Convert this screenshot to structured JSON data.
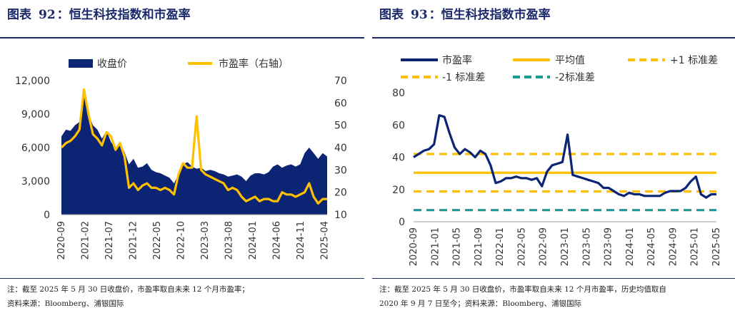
{
  "left": {
    "fig_label": "图表",
    "fig_num": "92",
    "fig_title": "：恒生科技指数和市盈率",
    "note1": "注：截至 2025 年 5 月 30 日收盘价，市盈率取自未来 12 个月市盈率；",
    "note2": "资料来源：Bloomberg、浦银国际"
  },
  "right": {
    "fig_label": "图表",
    "fig_num": "93",
    "fig_title": "：恒生科技指数市盈率",
    "note1": "注：截至 2025 年 5 月 30 日收盘价，市盈率取自未来 12 个月市盈率，历史均值取自",
    "note2": "2020 年 9 月 7 日至今；资料来源：Bloomberg、浦银国际"
  },
  "colors": {
    "navy": "#0b2474",
    "gold": "#ffc000",
    "teal": "#1a9a93",
    "title": "#1b2a6b"
  },
  "chart_data": [
    {
      "type": "area",
      "legend": [
        "收盘价",
        "市盈率（右轴）"
      ],
      "legend_position": "top",
      "x_ticks": [
        "2020-09",
        "2021-02",
        "2021-07",
        "2021-12",
        "2022-05",
        "2022-10",
        "2023-03",
        "2023-08",
        "2024-01",
        "2024-06",
        "2024-11",
        "2025-04"
      ],
      "y_left": {
        "range": [
          0,
          12000
        ],
        "ticks": [
          "0",
          "3,000",
          "6,000",
          "9,000",
          "12,000"
        ]
      },
      "y_right": {
        "range": [
          10,
          70
        ],
        "ticks": [
          "10",
          "20",
          "30",
          "40",
          "50",
          "60",
          "70"
        ]
      },
      "series": [
        {
          "name": "收盘价",
          "kind": "area",
          "axis": "left",
          "points": [
            [
              0,
              7000
            ],
            [
              1,
              7600
            ],
            [
              2,
              7500
            ],
            [
              3,
              8000
            ],
            [
              4,
              8300
            ],
            [
              5,
              11000
            ],
            [
              6,
              9000
            ],
            [
              7,
              8000
            ],
            [
              8,
              7600
            ],
            [
              9,
              6800
            ],
            [
              10,
              7500
            ],
            [
              11,
              6500
            ],
            [
              12,
              6000
            ],
            [
              13,
              6400
            ],
            [
              14,
              5600
            ],
            [
              15,
              4500
            ],
            [
              16,
              5000
            ],
            [
              17,
              4200
            ],
            [
              18,
              4300
            ],
            [
              19,
              4600
            ],
            [
              20,
              4000
            ],
            [
              21,
              3800
            ],
            [
              22,
              3700
            ],
            [
              23,
              3500
            ],
            [
              24,
              3300
            ],
            [
              25,
              2800
            ],
            [
              26,
              3600
            ],
            [
              27,
              4500
            ],
            [
              28,
              4700
            ],
            [
              29,
              4300
            ],
            [
              30,
              4100
            ],
            [
              31,
              4200
            ],
            [
              32,
              3900
            ],
            [
              33,
              4000
            ],
            [
              34,
              3900
            ],
            [
              35,
              3700
            ],
            [
              36,
              3600
            ],
            [
              37,
              3400
            ],
            [
              38,
              3500
            ],
            [
              39,
              3600
            ],
            [
              40,
              3400
            ],
            [
              41,
              3000
            ],
            [
              42,
              3500
            ],
            [
              43,
              3700
            ],
            [
              44,
              3700
            ],
            [
              45,
              3600
            ],
            [
              46,
              3800
            ],
            [
              47,
              4300
            ],
            [
              48,
              4500
            ],
            [
              49,
              4200
            ],
            [
              50,
              4400
            ],
            [
              51,
              4500
            ],
            [
              52,
              4300
            ],
            [
              53,
              4500
            ],
            [
              54,
              5500
            ],
            [
              55,
              6000
            ],
            [
              56,
              5500
            ],
            [
              57,
              5000
            ],
            [
              58,
              5500
            ],
            [
              59,
              5200
            ]
          ]
        },
        {
          "name": "市盈率（右轴）",
          "kind": "line",
          "axis": "right",
          "points": [
            [
              0,
              40
            ],
            [
              1,
              42
            ],
            [
              2,
              43
            ],
            [
              3,
              45
            ],
            [
              4,
              48
            ],
            [
              5,
              66
            ],
            [
              6,
              55
            ],
            [
              7,
              46
            ],
            [
              8,
              44
            ],
            [
              9,
              41
            ],
            [
              10,
              47
            ],
            [
              11,
              45
            ],
            [
              12,
              39
            ],
            [
              13,
              42
            ],
            [
              14,
              36
            ],
            [
              15,
              22
            ],
            [
              16,
              24
            ],
            [
              17,
              21
            ],
            [
              18,
              23
            ],
            [
              19,
              24
            ],
            [
              20,
              22
            ],
            [
              21,
              22
            ],
            [
              22,
              21
            ],
            [
              23,
              22
            ],
            [
              24,
              21
            ],
            [
              25,
              19
            ],
            [
              26,
              28
            ],
            [
              27,
              33
            ],
            [
              28,
              31
            ],
            [
              29,
              31
            ],
            [
              30,
              54
            ],
            [
              31,
              30
            ],
            [
              32,
              28
            ],
            [
              33,
              27
            ],
            [
              34,
              26
            ],
            [
              35,
              25
            ],
            [
              36,
              24
            ],
            [
              37,
              21
            ],
            [
              38,
              22
            ],
            [
              39,
              21
            ],
            [
              40,
              18
            ],
            [
              41,
              16
            ],
            [
              42,
              17
            ],
            [
              43,
              18
            ],
            [
              44,
              16
            ],
            [
              45,
              17
            ],
            [
              46,
              17
            ],
            [
              47,
              16
            ],
            [
              48,
              16
            ],
            [
              49,
              20
            ],
            [
              50,
              19
            ],
            [
              51,
              19
            ],
            [
              52,
              18
            ],
            [
              53,
              19
            ],
            [
              54,
              20
            ],
            [
              55,
              24
            ],
            [
              56,
              18
            ],
            [
              57,
              15
            ],
            [
              58,
              17
            ],
            [
              59,
              17
            ]
          ]
        }
      ]
    },
    {
      "type": "line",
      "legend": [
        "市盈率",
        "平均值",
        "+1 标准差",
        "-1 标准差",
        "-2标准差"
      ],
      "legend_position": "top",
      "x_ticks": [
        "2020-09",
        "2021-01",
        "2021-05",
        "2021-09",
        "2022-01",
        "2022-05",
        "2022-09",
        "2023-01",
        "2023-05",
        "2023-09",
        "2024-01",
        "2024-05",
        "2024-09",
        "2025-01",
        "2025-05"
      ],
      "y": {
        "range": [
          0,
          80
        ],
        "ticks": [
          "0",
          "20",
          "40",
          "60",
          "80"
        ]
      },
      "series": [
        {
          "name": "市盈率",
          "points": [
            [
              0,
              40
            ],
            [
              1,
              42
            ],
            [
              2,
              44
            ],
            [
              3,
              45
            ],
            [
              4,
              48
            ],
            [
              5,
              66
            ],
            [
              6,
              65
            ],
            [
              7,
              55
            ],
            [
              8,
              46
            ],
            [
              9,
              42
            ],
            [
              10,
              45
            ],
            [
              11,
              43
            ],
            [
              12,
              40
            ],
            [
              13,
              44
            ],
            [
              14,
              42
            ],
            [
              15,
              35
            ],
            [
              16,
              24
            ],
            [
              17,
              25
            ],
            [
              18,
              27
            ],
            [
              19,
              27
            ],
            [
              20,
              28
            ],
            [
              21,
              27
            ],
            [
              22,
              27
            ],
            [
              23,
              26
            ],
            [
              24,
              27
            ],
            [
              25,
              22
            ],
            [
              26,
              31
            ],
            [
              27,
              35
            ],
            [
              28,
              36
            ],
            [
              29,
              37
            ],
            [
              30,
              54
            ],
            [
              31,
              29
            ],
            [
              32,
              28
            ],
            [
              33,
              27
            ],
            [
              34,
              26
            ],
            [
              35,
              25
            ],
            [
              36,
              24
            ],
            [
              37,
              21
            ],
            [
              38,
              21
            ],
            [
              39,
              19
            ],
            [
              40,
              17
            ],
            [
              41,
              16
            ],
            [
              42,
              18
            ],
            [
              43,
              17
            ],
            [
              44,
              17
            ],
            [
              45,
              16
            ],
            [
              46,
              16
            ],
            [
              47,
              16
            ],
            [
              48,
              16
            ],
            [
              49,
              18
            ],
            [
              50,
              19
            ],
            [
              51,
              19
            ],
            [
              52,
              19
            ],
            [
              53,
              21
            ],
            [
              54,
              25
            ],
            [
              55,
              28
            ],
            [
              56,
              17
            ],
            [
              57,
              15
            ],
            [
              58,
              17
            ],
            [
              59,
              17
            ]
          ]
        },
        {
          "name": "平均值",
          "value": 30.4
        },
        {
          "name": "+1 标准差",
          "value": 42.0
        },
        {
          "name": "-1 标准差",
          "value": 18.8
        },
        {
          "name": "-2标准差",
          "value": 7.2
        }
      ]
    }
  ]
}
